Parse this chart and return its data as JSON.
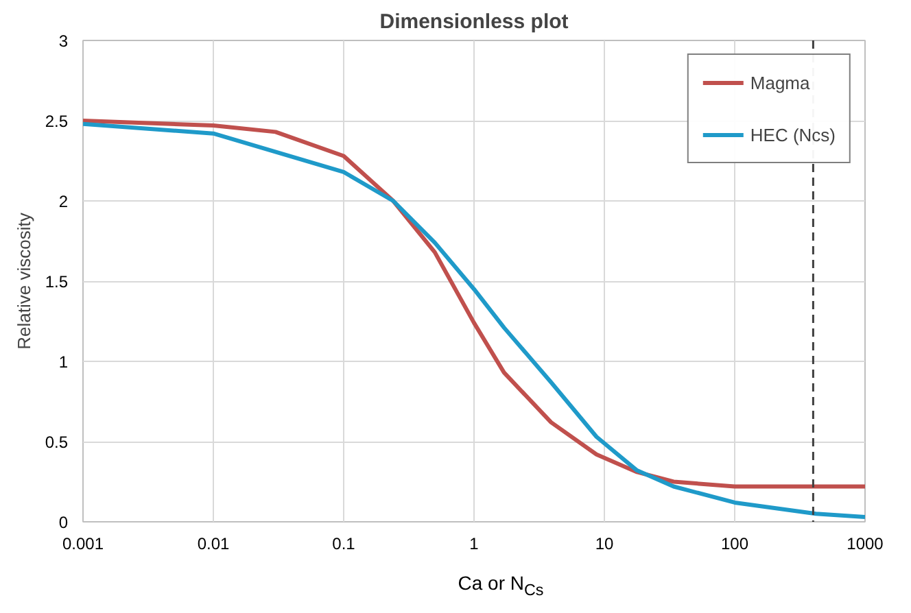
{
  "chart_data": {
    "type": "line",
    "title": "Dimensionless plot",
    "xlabel": "Ca or N$_{Cs}$",
    "ylabel": "Relative viscosity",
    "log": "x",
    "xlim": [
      0.001,
      1000
    ],
    "xticks": [
      0.001,
      0.01,
      0.1,
      1,
      10,
      100,
      1000
    ],
    "ylim": [
      0,
      3
    ],
    "yticks": [
      0,
      0.5,
      1,
      1.5,
      2,
      2.5,
      3
    ],
    "grid": true,
    "legend": "top right",
    "line_style": "solid",
    "marker": "none",
    "series": [
      {
        "name": "Magma",
        "color": "#c0504d",
        "x": [
          0.001,
          0.01,
          0.03,
          0.1,
          0.24,
          0.5,
          1,
          1.7,
          3.9,
          8.7,
          17.8,
          34,
          100,
          1000
        ],
        "values": [
          2.5,
          2.47,
          2.43,
          2.28,
          2.0,
          1.68,
          1.24,
          0.93,
          0.62,
          0.42,
          0.31,
          0.25,
          0.22,
          0.22
        ]
      },
      {
        "name": "HEC (Ncs)",
        "color": "#1f9ac9",
        "x": [
          0.001,
          0.01,
          0.1,
          0.24,
          0.5,
          1,
          1.7,
          3.9,
          8.7,
          17.8,
          34,
          100,
          420,
          1000
        ],
        "values": [
          2.48,
          2.42,
          2.18,
          2.0,
          1.74,
          1.45,
          1.21,
          0.87,
          0.53,
          0.32,
          0.22,
          0.12,
          0.05,
          0.03
        ]
      }
    ],
    "ref_lines": [
      {
        "axis": "x",
        "value": 400,
        "color": "#404040",
        "line_style": "dashed"
      }
    ]
  }
}
